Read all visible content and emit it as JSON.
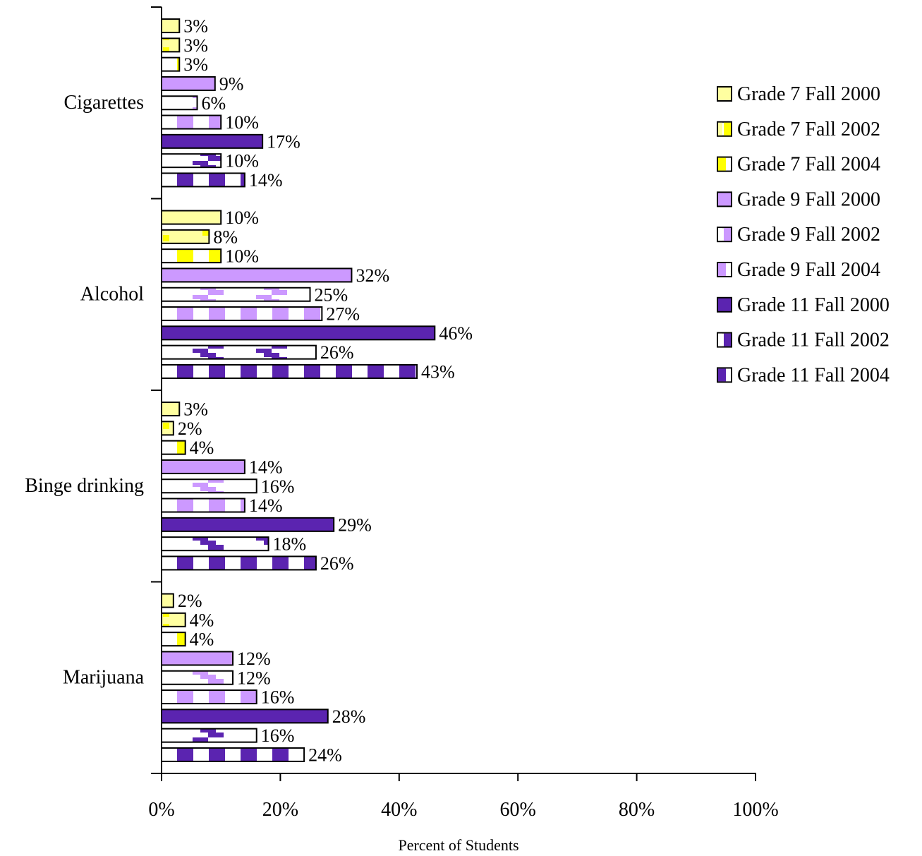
{
  "chart_data": {
    "type": "bar",
    "orientation": "horizontal",
    "categories": [
      "Cigarettes",
      "Alcohol",
      "Binge drinking",
      "Marijuana"
    ],
    "series": [
      {
        "name": "Grade 7 Fall 2000",
        "values": [
          3,
          10,
          3,
          2
        ],
        "color": "#FFFFA0",
        "pattern": "solid"
      },
      {
        "name": "Grade 7 Fall 2002",
        "values": [
          3,
          8,
          2,
          4
        ],
        "color": "#FFFF00",
        "pattern": "light-dotted"
      },
      {
        "name": "Grade 7 Fall 2004",
        "values": [
          3,
          10,
          4,
          4
        ],
        "color": "#FFFF00",
        "pattern": "blocks"
      },
      {
        "name": "Grade 9 Fall 2000",
        "values": [
          9,
          32,
          14,
          12
        ],
        "color": "#CC99FF",
        "pattern": "solid"
      },
      {
        "name": "Grade 9 Fall 2002",
        "values": [
          6,
          25,
          16,
          12
        ],
        "color": "#CC99FF",
        "pattern": "steps"
      },
      {
        "name": "Grade 9 Fall 2004",
        "values": [
          10,
          27,
          14,
          16
        ],
        "color": "#CC99FF",
        "pattern": "blocks"
      },
      {
        "name": "Grade 11 Fall 2000",
        "values": [
          17,
          46,
          29,
          28
        ],
        "color": "#5B24B0",
        "pattern": "solid"
      },
      {
        "name": "Grade 11 Fall 2002",
        "values": [
          10,
          26,
          18,
          16
        ],
        "color": "#5B24B0",
        "pattern": "steps"
      },
      {
        "name": "Grade 11 Fall 2004",
        "values": [
          14,
          43,
          26,
          24
        ],
        "color": "#5B24B0",
        "pattern": "blocks"
      }
    ],
    "value_labels": [
      [
        "3%",
        "3%",
        "3%",
        "9%",
        "6%",
        "10%",
        "17%",
        "10%",
        "14%"
      ],
      [
        "10%",
        "8%",
        "10%",
        "32%",
        "25%",
        "27%",
        "46%",
        "26%",
        "43%"
      ],
      [
        "3%",
        "2%",
        "4%",
        "14%",
        "16%",
        "14%",
        "29%",
        "18%",
        "26%"
      ],
      [
        "2%",
        "4%",
        "4%",
        "12%",
        "12%",
        "16%",
        "28%",
        "16%",
        "24%"
      ]
    ],
    "x_ticks": [
      "0%",
      "20%",
      "40%",
      "60%",
      "80%",
      "100%"
    ],
    "xlim": [
      0,
      100
    ],
    "xlabel": "Percent of Students",
    "ylabel": "",
    "title": "",
    "legend_position": "right",
    "grid": false
  }
}
